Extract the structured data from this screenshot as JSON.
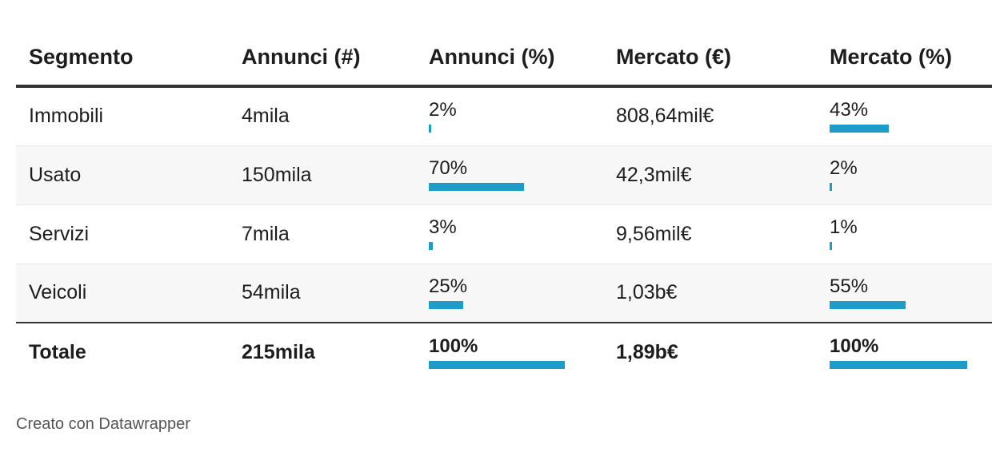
{
  "chart_data": {
    "type": "table",
    "columns": [
      "Segmento",
      "Annunci (#)",
      "Annunci (%)",
      "Mercato (€)",
      "Mercato (%)"
    ],
    "rows": [
      {
        "segmento": "Immobili",
        "annunci": "4mila",
        "annunci_pct": "2%",
        "annunci_pct_value": 2,
        "mercato": "808,64mil€",
        "mercato_pct": "43%",
        "mercato_pct_value": 43
      },
      {
        "segmento": "Usato",
        "annunci": "150mila",
        "annunci_pct": "70%",
        "annunci_pct_value": 70,
        "mercato": "42,3mil€",
        "mercato_pct": "2%",
        "mercato_pct_value": 2
      },
      {
        "segmento": "Servizi",
        "annunci": "7mila",
        "annunci_pct": "3%",
        "annunci_pct_value": 3,
        "mercato": "9,56mil€",
        "mercato_pct": "1%",
        "mercato_pct_value": 1
      },
      {
        "segmento": "Veicoli",
        "annunci": "54mila",
        "annunci_pct": "25%",
        "annunci_pct_value": 25,
        "mercato": "1,03b€",
        "mercato_pct": "55%",
        "mercato_pct_value": 55
      }
    ],
    "total": {
      "segmento": "Totale",
      "annunci": "215mila",
      "annunci_pct": "100%",
      "annunci_pct_value": 100,
      "mercato": "1,89b€",
      "mercato_pct": "100%",
      "mercato_pct_value": 100
    },
    "bar_color": "#1d9bc9"
  },
  "footer": {
    "credit": "Creato con Datawrapper"
  }
}
